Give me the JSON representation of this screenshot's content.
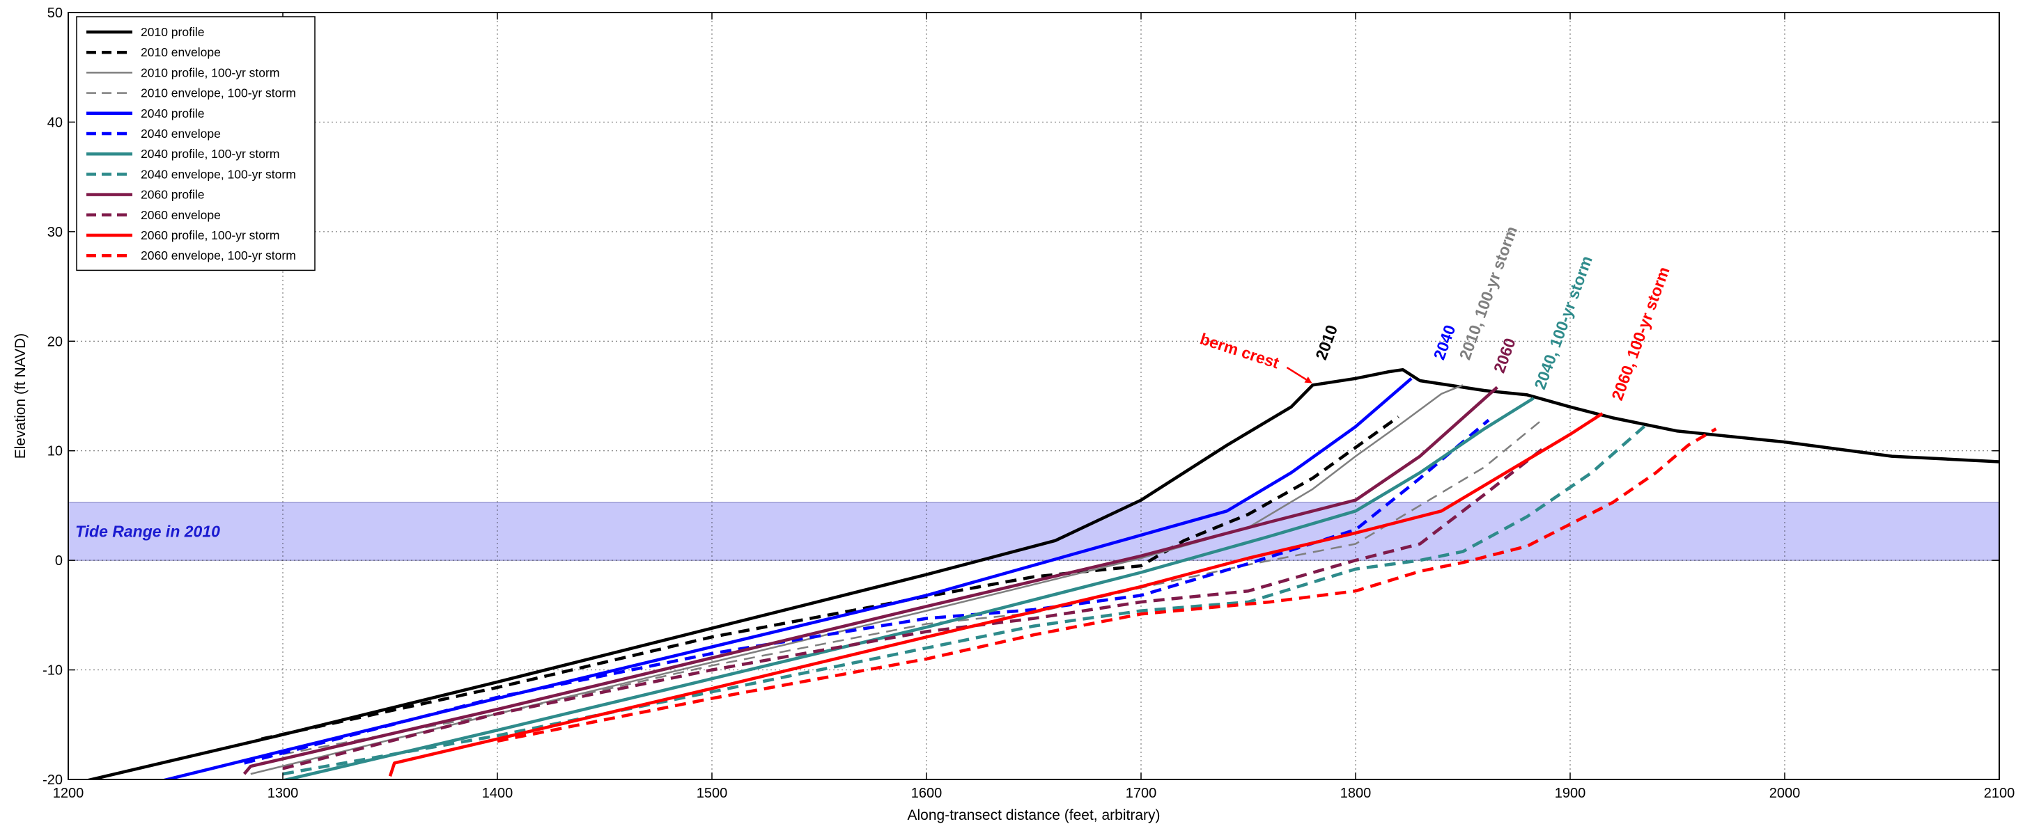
{
  "chart_data": {
    "type": "line",
    "title": "",
    "xlabel": "Along-transect distance (feet, arbitrary)",
    "ylabel": "Elevation (ft NAVD)",
    "xlim": [
      1200,
      2100
    ],
    "ylim": [
      -20,
      50
    ],
    "xticks": [
      1200,
      1300,
      1400,
      1500,
      1600,
      1700,
      1800,
      1900,
      2000,
      2100
    ],
    "yticks": [
      -20,
      -10,
      0,
      10,
      20,
      30,
      40,
      50
    ],
    "grid": true,
    "legend_position": "top-left",
    "band": {
      "label": "Tide Range in 2010",
      "y0": 0,
      "y1": 5.3,
      "color": "#c8c8fa",
      "label_color": "#1a1ad0"
    },
    "series": [
      {
        "name": "2010 profile",
        "color": "#000000",
        "dash": "solid",
        "width": "thick",
        "points": [
          [
            1200,
            -20.5
          ],
          [
            1300,
            -15.9
          ],
          [
            1400,
            -11.1
          ],
          [
            1500,
            -6.2
          ],
          [
            1600,
            -1.3
          ],
          [
            1660,
            1.8
          ],
          [
            1700,
            5.5
          ],
          [
            1740,
            10.5
          ],
          [
            1770,
            14
          ],
          [
            1780,
            16
          ],
          [
            1800,
            16.6
          ],
          [
            1815,
            17.2
          ],
          [
            1822,
            17.4
          ],
          [
            1830,
            16.4
          ],
          [
            1860,
            15.5
          ],
          [
            1880,
            15.1
          ],
          [
            1900,
            14
          ],
          [
            1920,
            13
          ],
          [
            1950,
            11.8
          ],
          [
            2000,
            10.8
          ],
          [
            2050,
            9.5
          ],
          [
            2100,
            9
          ]
        ]
      },
      {
        "name": "2010 envelope",
        "color": "#000000",
        "dash": "dashed",
        "width": "thick",
        "points": [
          [
            1290,
            -16.3
          ],
          [
            1400,
            -11.6
          ],
          [
            1500,
            -7
          ],
          [
            1600,
            -3.3
          ],
          [
            1650,
            -1.5
          ],
          [
            1700,
            -0.5
          ],
          [
            1720,
            1.8
          ],
          [
            1750,
            4.2
          ],
          [
            1780,
            7.5
          ],
          [
            1800,
            10.3
          ],
          [
            1820,
            13.1
          ]
        ]
      },
      {
        "name": "2010 profile, 100-yr storm",
        "color": "#7f7f7f",
        "dash": "solid",
        "width": "thin",
        "points": [
          [
            1285,
            -19.5
          ],
          [
            1400,
            -14
          ],
          [
            1500,
            -9.3
          ],
          [
            1600,
            -4.6
          ],
          [
            1700,
            0.2
          ],
          [
            1750,
            3
          ],
          [
            1780,
            6.5
          ],
          [
            1800,
            9.5
          ],
          [
            1820,
            12.3
          ],
          [
            1840,
            15.2
          ],
          [
            1850,
            16
          ]
        ]
      },
      {
        "name": "2010 envelope, 100-yr storm",
        "color": "#7f7f7f",
        "dash": "dashed",
        "width": "thin",
        "points": [
          [
            1300,
            -17.7
          ],
          [
            1400,
            -14
          ],
          [
            1500,
            -9.6
          ],
          [
            1600,
            -5.8
          ],
          [
            1650,
            -4.8
          ],
          [
            1700,
            -2.5
          ],
          [
            1750,
            -0.4
          ],
          [
            1800,
            1.5
          ],
          [
            1830,
            5
          ],
          [
            1860,
            8.5
          ],
          [
            1888,
            13
          ]
        ]
      },
      {
        "name": "2040 profile",
        "color": "#0000ff",
        "dash": "solid",
        "width": "thick",
        "points": [
          [
            1240,
            -20.3
          ],
          [
            1300,
            -17.4
          ],
          [
            1400,
            -12.6
          ],
          [
            1500,
            -7.9
          ],
          [
            1600,
            -3.2
          ],
          [
            1700,
            2.3
          ],
          [
            1740,
            4.5
          ],
          [
            1770,
            8
          ],
          [
            1800,
            12.2
          ],
          [
            1826,
            16.6
          ]
        ]
      },
      {
        "name": "2040 envelope",
        "color": "#0000ff",
        "dash": "dashed",
        "width": "thick",
        "points": [
          [
            1282,
            -18.5
          ],
          [
            1400,
            -12.5
          ],
          [
            1500,
            -8.5
          ],
          [
            1600,
            -5.3
          ],
          [
            1650,
            -4.5
          ],
          [
            1700,
            -3.2
          ],
          [
            1750,
            -0.3
          ],
          [
            1800,
            2.8
          ],
          [
            1830,
            7.5
          ],
          [
            1862,
            12.8
          ]
        ]
      },
      {
        "name": "2040 profile, 100-yr storm",
        "color": "#2e8b8b",
        "dash": "solid",
        "width": "thick",
        "points": [
          [
            1300,
            -20.1
          ],
          [
            1400,
            -15.5
          ],
          [
            1500,
            -10.8
          ],
          [
            1600,
            -6.1
          ],
          [
            1700,
            -1.1
          ],
          [
            1760,
            2.2
          ],
          [
            1800,
            4.5
          ],
          [
            1830,
            8
          ],
          [
            1860,
            12
          ],
          [
            1883,
            14.8
          ]
        ]
      },
      {
        "name": "2040 envelope, 100-yr storm",
        "color": "#2e8b8b",
        "dash": "dashed",
        "width": "thick",
        "points": [
          [
            1300,
            -19.5
          ],
          [
            1400,
            -16
          ],
          [
            1500,
            -12
          ],
          [
            1600,
            -8
          ],
          [
            1650,
            -6
          ],
          [
            1700,
            -4.6
          ],
          [
            1750,
            -3.8
          ],
          [
            1800,
            -0.8
          ],
          [
            1830,
            0
          ],
          [
            1850,
            0.8
          ],
          [
            1880,
            4
          ],
          [
            1910,
            8
          ],
          [
            1935,
            12.3
          ]
        ]
      },
      {
        "name": "2060 profile",
        "color": "#7f1a4a",
        "dash": "solid",
        "width": "thick",
        "points": [
          [
            1282,
            -19.5
          ],
          [
            1285,
            -18.8
          ],
          [
            1400,
            -13.6
          ],
          [
            1500,
            -8.9
          ],
          [
            1600,
            -4.2
          ],
          [
            1700,
            0.4
          ],
          [
            1760,
            3.5
          ],
          [
            1800,
            5.5
          ],
          [
            1830,
            9.5
          ],
          [
            1866,
            15.8
          ]
        ]
      },
      {
        "name": "2060 envelope",
        "color": "#7f1a4a",
        "dash": "dashed",
        "width": "thick",
        "points": [
          [
            1300,
            -19
          ],
          [
            1400,
            -14
          ],
          [
            1500,
            -10
          ],
          [
            1600,
            -6.5
          ],
          [
            1650,
            -5.3
          ],
          [
            1700,
            -3.8
          ],
          [
            1750,
            -2.8
          ],
          [
            1800,
            0
          ],
          [
            1830,
            1.5
          ],
          [
            1860,
            6
          ],
          [
            1888,
            10.3
          ]
        ]
      },
      {
        "name": "2060 profile, 100-yr storm",
        "color": "#ff0000",
        "dash": "solid",
        "width": "thick",
        "points": [
          [
            1350,
            -19.7
          ],
          [
            1352,
            -18.5
          ],
          [
            1400,
            -16.3
          ],
          [
            1500,
            -11.7
          ],
          [
            1600,
            -7
          ],
          [
            1700,
            -2.4
          ],
          [
            1750,
            0.2
          ],
          [
            1800,
            2.5
          ],
          [
            1840,
            4.5
          ],
          [
            1870,
            8
          ],
          [
            1900,
            11.5
          ],
          [
            1915,
            13.4
          ]
        ]
      },
      {
        "name": "2060 envelope, 100-yr storm",
        "color": "#ff0000",
        "dash": "dashed",
        "width": "thick",
        "points": [
          [
            1400,
            -16.5
          ],
          [
            1500,
            -12.6
          ],
          [
            1600,
            -9
          ],
          [
            1650,
            -6.8
          ],
          [
            1700,
            -4.9
          ],
          [
            1760,
            -3.8
          ],
          [
            1800,
            -2.8
          ],
          [
            1830,
            -1
          ],
          [
            1850,
            -0.2
          ],
          [
            1880,
            1.3
          ],
          [
            1900,
            3.3
          ],
          [
            1920,
            5.3
          ],
          [
            1940,
            8
          ],
          [
            1955,
            10.5
          ],
          [
            1968,
            12
          ]
        ]
      }
    ],
    "annotations": [
      {
        "text": "2010",
        "x": 1786,
        "y": 18.2,
        "color": "#000000",
        "rotate": -70
      },
      {
        "text": "2040",
        "x": 1841,
        "y": 18.2,
        "color": "#0000ff",
        "rotate": -70
      },
      {
        "text": "2010, 100-yr storm",
        "x": 1853,
        "y": 18.2,
        "color": "#7f7f7f",
        "rotate": -70
      },
      {
        "text": "2060",
        "x": 1869,
        "y": 17,
        "color": "#7f1a4a",
        "rotate": -70
      },
      {
        "text": "2040, 100-yr storm",
        "x": 1888,
        "y": 15.5,
        "color": "#2e8b8b",
        "rotate": -70
      },
      {
        "text": "2060, 100-yr storm",
        "x": 1924,
        "y": 14.5,
        "color": "#ff0000",
        "rotate": -70
      }
    ],
    "berm_label": {
      "text": "berm crest",
      "color": "#ff0000"
    }
  }
}
